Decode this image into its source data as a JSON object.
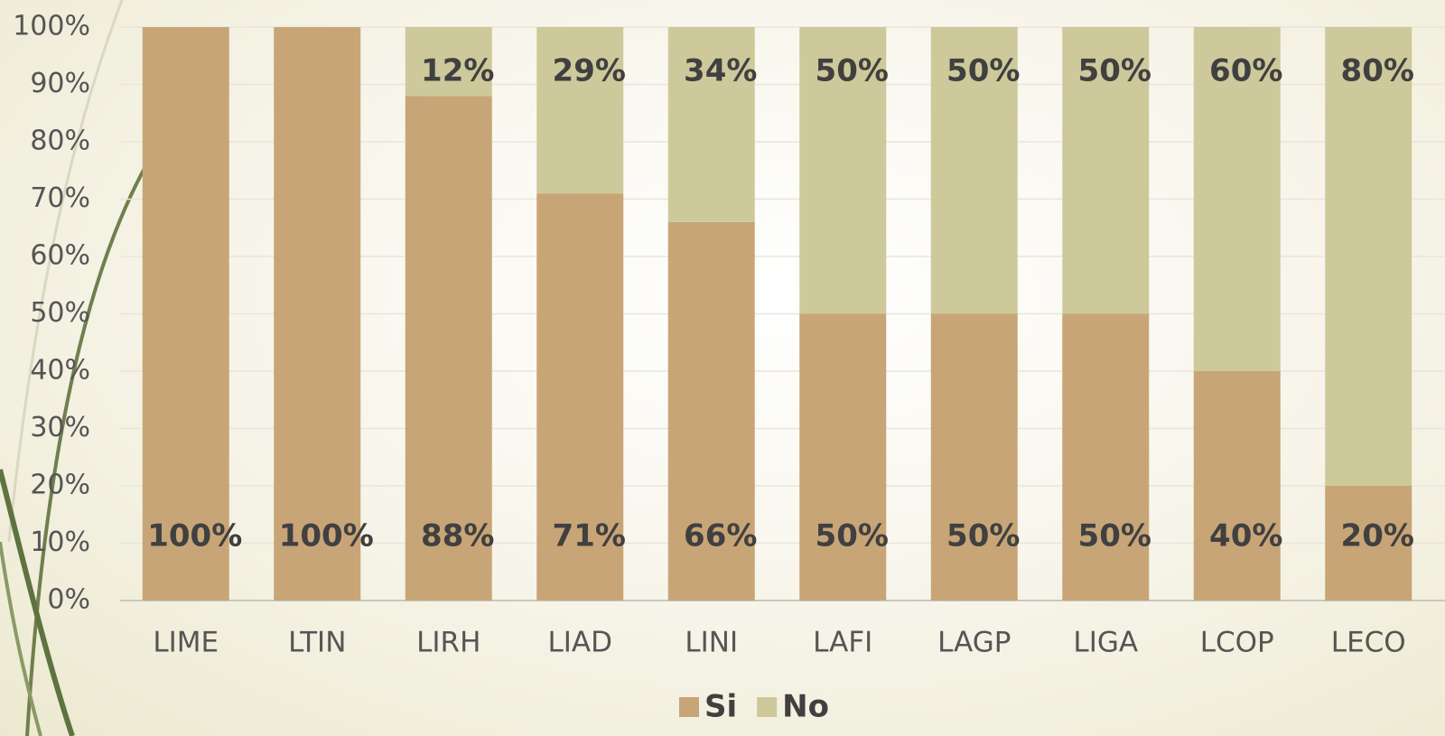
{
  "chart_data": {
    "type": "stacked_bar",
    "categories": [
      "LIME",
      "LTIN",
      "LIRH",
      "LIAD",
      "LINI",
      "LAFI",
      "LAGP",
      "LIGA",
      "LCOP",
      "LECO"
    ],
    "series": [
      {
        "name": "Si",
        "color": "#c8a577",
        "values": [
          100,
          100,
          88,
          71,
          66,
          50,
          50,
          50,
          40,
          20
        ],
        "value_labels": [
          "100%",
          "100%",
          "88%",
          "71%",
          "66%",
          "50%",
          "50%",
          "50%",
          "40%",
          "20%"
        ]
      },
      {
        "name": "No",
        "color": "#cdc99b",
        "values": [
          0,
          0,
          12,
          29,
          34,
          50,
          50,
          50,
          60,
          80
        ],
        "value_labels": [
          null,
          null,
          "12%",
          "29%",
          "34%",
          "50%",
          "50%",
          "50%",
          "60%",
          "80%"
        ]
      }
    ],
    "ylim": [
      0,
      100
    ],
    "yticks": [
      {
        "value": 0,
        "label": "0%"
      },
      {
        "value": 10,
        "label": "10%"
      },
      {
        "value": 20,
        "label": "20%"
      },
      {
        "value": 30,
        "label": "30%"
      },
      {
        "value": 40,
        "label": "40%"
      },
      {
        "value": 50,
        "label": "50%"
      },
      {
        "value": 60,
        "label": "60%"
      },
      {
        "value": 70,
        "label": "70%"
      },
      {
        "value": 80,
        "label": "80%"
      },
      {
        "value": 90,
        "label": "90%"
      },
      {
        "value": 100,
        "label": "100%"
      }
    ],
    "grid": true,
    "legend": "bottom"
  }
}
